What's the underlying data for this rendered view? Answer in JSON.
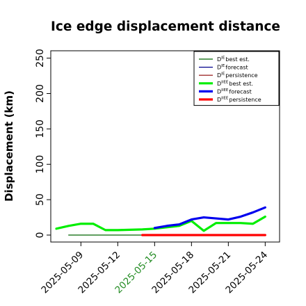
{
  "chart_data": {
    "type": "line",
    "title": "Ice edge displacement distance",
    "xlabel": "",
    "ylabel": "Displacement (km)",
    "ylim": [
      0,
      260
    ],
    "xlim": [
      "2025-05-07",
      "2025-05-25"
    ],
    "yticks": [
      "0",
      "50",
      "100",
      "150",
      "200",
      "250"
    ],
    "xticks": [
      {
        "label": "2025-05-09",
        "color": "#000000"
      },
      {
        "label": "2025-05-12",
        "color": "#000000"
      },
      {
        "label": "2025-05-15",
        "color": "#228B22"
      },
      {
        "label": "2025-05-18",
        "color": "#000000"
      },
      {
        "label": "2025-05-21",
        "color": "#000000"
      },
      {
        "label": "2025-05-24",
        "color": "#000000"
      }
    ],
    "legend_position": "top-right",
    "grid": false,
    "series": [
      {
        "name": "D^IE_{best est.}",
        "color": "#006400",
        "width": 1.2,
        "x": [
          "2025-05-08",
          "2025-05-09",
          "2025-05-10",
          "2025-05-11",
          "2025-05-12",
          "2025-05-13",
          "2025-05-14",
          "2025-05-15"
        ],
        "y": [
          0,
          0,
          0,
          0,
          0,
          0,
          0,
          0
        ]
      },
      {
        "name": "D^IE_{forecast}",
        "color": "#00008B",
        "width": 1.2,
        "x": [],
        "y": []
      },
      {
        "name": "D^IE_{persistence}",
        "color": "#8B0000",
        "width": 1.2,
        "x": [],
        "y": []
      },
      {
        "name": "D^IIEE_{best est.}",
        "color": "#00EE00",
        "width": 3.2,
        "x": [
          "2025-05-07",
          "2025-05-08",
          "2025-05-09",
          "2025-05-10",
          "2025-05-11",
          "2025-05-12",
          "2025-05-13",
          "2025-05-14",
          "2025-05-15",
          "2025-05-16",
          "2025-05-17",
          "2025-05-18",
          "2025-05-19",
          "2025-05-20",
          "2025-05-21",
          "2025-05-22",
          "2025-05-23",
          "2025-05-24"
        ],
        "y": [
          9,
          13,
          16,
          16,
          7,
          7,
          7.5,
          8,
          9,
          11,
          13,
          20,
          6,
          17,
          17,
          17,
          16,
          26
        ]
      },
      {
        "name": "D^IIEE_{forecast}",
        "color": "#0000EE",
        "width": 3.2,
        "x": [
          "2025-05-15",
          "2025-05-16",
          "2025-05-17",
          "2025-05-18",
          "2025-05-19",
          "2025-05-20",
          "2025-05-21",
          "2025-05-22",
          "2025-05-23",
          "2025-05-24"
        ],
        "y": [
          10,
          13,
          15,
          22,
          25,
          23.5,
          22,
          26,
          32,
          39
        ]
      },
      {
        "name": "D^IIEE_{persistence}",
        "color": "#FF0000",
        "width": 3.2,
        "x": [
          "2025-05-14",
          "2025-05-15",
          "2025-05-16",
          "2025-05-17",
          "2025-05-18",
          "2025-05-19",
          "2025-05-20",
          "2025-05-21",
          "2025-05-22",
          "2025-05-23",
          "2025-05-24"
        ],
        "y": [
          0,
          0,
          0,
          0,
          0,
          0,
          0,
          0,
          0,
          0,
          0
        ]
      }
    ],
    "legend": [
      {
        "base": "D",
        "sup": "IE",
        "sub": "best est.",
        "color": "#006400",
        "width": 1.2
      },
      {
        "base": "D",
        "sup": "IE",
        "sub": "forecast",
        "color": "#00008B",
        "width": 1.2
      },
      {
        "base": "D",
        "sup": "IE",
        "sub": "persistence",
        "color": "#8B0000",
        "width": 1.2
      },
      {
        "base": "D",
        "sup": "IIEE",
        "sub": "best est.",
        "color": "#00EE00",
        "width": 3.2
      },
      {
        "base": "D",
        "sup": "IIEE",
        "sub": "forecast",
        "color": "#0000EE",
        "width": 3.2
      },
      {
        "base": "D",
        "sup": "IIEE",
        "sub": "persistence",
        "color": "#FF0000",
        "width": 3.2
      }
    ]
  }
}
